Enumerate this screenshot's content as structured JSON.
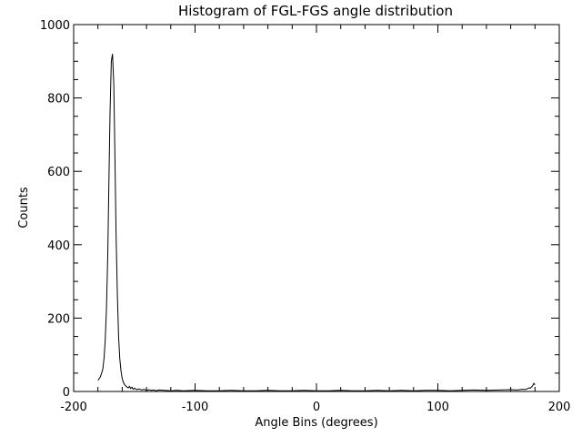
{
  "chart_data": {
    "type": "line",
    "title": "Histogram of FGL-FGS angle distribution",
    "xlabel": "Angle Bins (degrees)",
    "ylabel": "Counts",
    "xlim": [
      -200,
      200
    ],
    "ylim": [
      0,
      1000
    ],
    "xticks": [
      -200,
      -100,
      0,
      100,
      200
    ],
    "xtick_labels": [
      "-200",
      "-100",
      "0",
      "100",
      "200"
    ],
    "yticks": [
      0,
      200,
      400,
      600,
      800,
      1000
    ],
    "ytick_labels": [
      "0",
      "200",
      "400",
      "600",
      "800",
      "1000"
    ],
    "grid": false,
    "legend": "none",
    "series": [
      {
        "color": "#000000",
        "x": [
          -180,
          -178,
          -176,
          -175,
          -174,
          -173,
          -172,
          -171,
          -170,
          -169,
          -168,
          -167,
          -166,
          -165,
          -164,
          -163,
          -162,
          -161,
          -160,
          -159,
          -158,
          -157,
          -156,
          -155,
          -154,
          -153,
          -152,
          -151,
          -150,
          -148,
          -146,
          -144,
          -142,
          -140,
          -138,
          -136,
          -134,
          -132,
          -130,
          -125,
          -120,
          -115,
          -110,
          -100,
          -90,
          -80,
          -70,
          -60,
          -50,
          -40,
          -30,
          -20,
          -10,
          0,
          10,
          20,
          30,
          40,
          50,
          60,
          70,
          80,
          90,
          100,
          110,
          120,
          130,
          140,
          150,
          160,
          165,
          170,
          172,
          174,
          175,
          176,
          177,
          178,
          179,
          180
        ],
        "y": [
          30,
          40,
          60,
          90,
          140,
          220,
          360,
          560,
          760,
          900,
          920,
          840,
          640,
          420,
          260,
          150,
          90,
          55,
          35,
          25,
          18,
          15,
          12,
          10,
          14,
          8,
          12,
          6,
          9,
          5,
          7,
          4,
          6,
          3,
          5,
          3,
          4,
          2,
          4,
          3,
          2,
          3,
          2,
          3,
          2,
          2,
          3,
          2,
          2,
          3,
          2,
          2,
          3,
          2,
          2,
          3,
          2,
          2,
          3,
          2,
          3,
          2,
          3,
          3,
          2,
          3,
          4,
          3,
          4,
          5,
          4,
          6,
          5,
          8,
          10,
          9,
          12,
          15,
          22,
          18
        ]
      }
    ]
  }
}
